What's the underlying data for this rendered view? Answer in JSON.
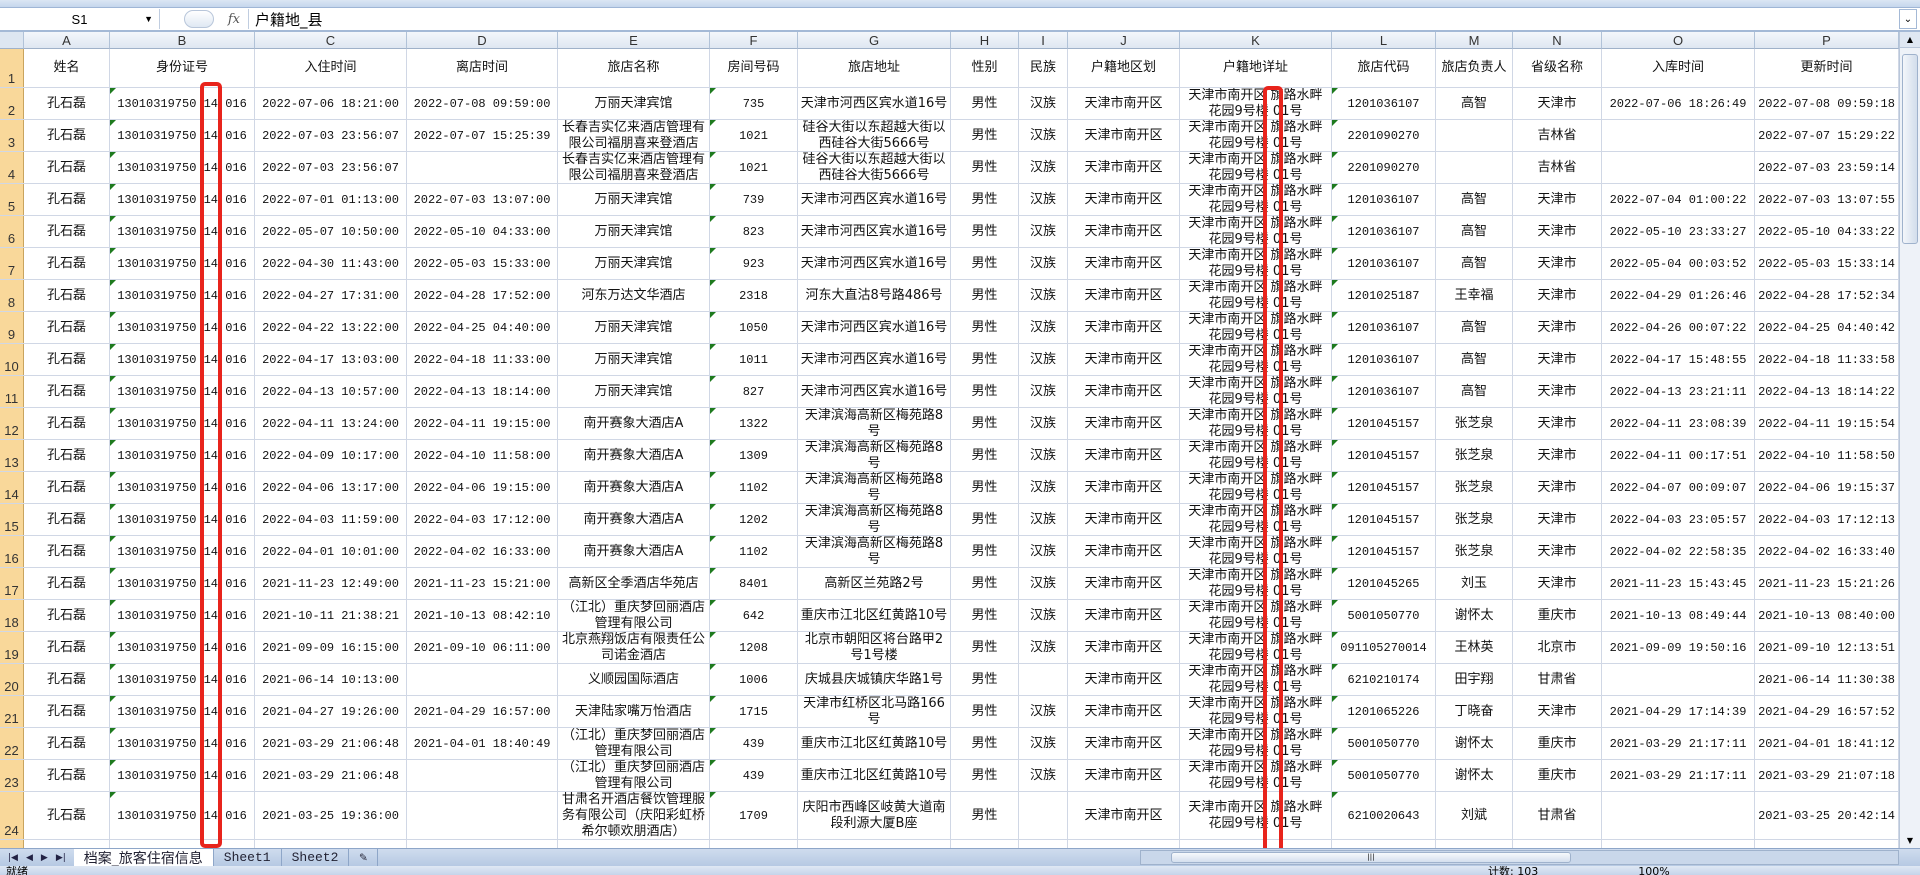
{
  "formula_bar": {
    "name_box": "S1",
    "fx_label": "fx",
    "formula": "户籍地_县"
  },
  "columns": [
    "A",
    "B",
    "C",
    "D",
    "E",
    "F",
    "G",
    "H",
    "I",
    "J",
    "K",
    "L",
    "M",
    "N",
    "O",
    "P"
  ],
  "header_row": [
    "姓名",
    "身份证号",
    "入住时间",
    "离店时间",
    "旅店名称",
    "房间号码",
    "旅店地址",
    "性别",
    "民族",
    "户籍地区划",
    "户籍地详址",
    "旅店代码",
    "旅店负责人",
    "省级名称",
    "入库时间",
    "更新时间"
  ],
  "rows": [
    {
      "n": "2",
      "cells": [
        "孔石磊",
        "13010319750 14 016",
        "2022-07-06 18:21:00",
        "2022-07-08 09:59:00",
        "万丽天津宾馆",
        "735",
        "天津市河西区宾水道16号",
        "男性",
        "汉族",
        "天津市南开区",
        "天津市南开区  旗路水畔\n花园9号楼  01号",
        "1201036107",
        "高智",
        "天津市",
        "2022-07-06 18:26:49",
        "2022-07-08 09:59:18"
      ]
    },
    {
      "n": "3",
      "cells": [
        "孔石磊",
        "13010319750 14 016",
        "2022-07-03 23:56:07",
        "2022-07-07 15:25:39",
        "长春吉实亿来酒店管理有限公司福朋喜来登酒店",
        "1021",
        "硅谷大街以东超越大街以西硅谷大街5666号",
        "男性",
        "汉族",
        "天津市南开区",
        "天津市南开区  旗路水畔\n花园9号楼  01号",
        "2201090270",
        "",
        "吉林省",
        "",
        "2022-07-07 15:29:22"
      ]
    },
    {
      "n": "4",
      "cells": [
        "孔石磊",
        "13010319750 14 016",
        "2022-07-03 23:56:07",
        "",
        "长春吉实亿来酒店管理有限公司福朋喜来登酒店",
        "1021",
        "硅谷大街以东超越大街以西硅谷大街5666号",
        "男性",
        "汉族",
        "天津市南开区",
        "天津市南开区  旗路水畔\n花园9号楼  01号",
        "2201090270",
        "",
        "吉林省",
        "",
        "2022-07-03 23:59:14"
      ]
    },
    {
      "n": "5",
      "cells": [
        "孔石磊",
        "13010319750 14 016",
        "2022-07-01 01:13:00",
        "2022-07-03 13:07:00",
        "万丽天津宾馆",
        "739",
        "天津市河西区宾水道16号",
        "男性",
        "汉族",
        "天津市南开区",
        "天津市南开区  旗路水畔\n花园9号楼  01号",
        "1201036107",
        "高智",
        "天津市",
        "2022-07-04 01:00:22",
        "2022-07-03 13:07:55"
      ]
    },
    {
      "n": "6",
      "cells": [
        "孔石磊",
        "13010319750 14 016",
        "2022-05-07 10:50:00",
        "2022-05-10 04:33:00",
        "万丽天津宾馆",
        "823",
        "天津市河西区宾水道16号",
        "男性",
        "汉族",
        "天津市南开区",
        "天津市南开区  旗路水畔\n花园9号楼  01号",
        "1201036107",
        "高智",
        "天津市",
        "2022-05-10 23:33:27",
        "2022-05-10 04:33:22"
      ]
    },
    {
      "n": "7",
      "cells": [
        "孔石磊",
        "13010319750 14 016",
        "2022-04-30 11:43:00",
        "2022-05-03 15:33:00",
        "万丽天津宾馆",
        "923",
        "天津市河西区宾水道16号",
        "男性",
        "汉族",
        "天津市南开区",
        "天津市南开区  旗路水畔\n花园9号楼  01号",
        "1201036107",
        "高智",
        "天津市",
        "2022-05-04 00:03:52",
        "2022-05-03 15:33:14"
      ]
    },
    {
      "n": "8",
      "cells": [
        "孔石磊",
        "13010319750 14 016",
        "2022-04-27 17:31:00",
        "2022-04-28 17:52:00",
        "河东万达文华酒店",
        "2318",
        "河东大直沽8号路486号",
        "男性",
        "汉族",
        "天津市南开区",
        "天津市南开区  旗路水畔\n花园9号楼  01号",
        "1201025187",
        "王幸福",
        "天津市",
        "2022-04-29 01:26:46",
        "2022-04-28 17:52:34"
      ]
    },
    {
      "n": "9",
      "cells": [
        "孔石磊",
        "13010319750 14 016",
        "2022-04-22 13:22:00",
        "2022-04-25 04:40:00",
        "万丽天津宾馆",
        "1050",
        "天津市河西区宾水道16号",
        "男性",
        "汉族",
        "天津市南开区",
        "天津市南开区  旗路水畔\n花园9号楼  01号",
        "1201036107",
        "高智",
        "天津市",
        "2022-04-26 00:07:22",
        "2022-04-25 04:40:42"
      ]
    },
    {
      "n": "10",
      "cells": [
        "孔石磊",
        "13010319750 14 016",
        "2022-04-17 13:03:00",
        "2022-04-18 11:33:00",
        "万丽天津宾馆",
        "1011",
        "天津市河西区宾水道16号",
        "男性",
        "汉族",
        "天津市南开区",
        "天津市南开区  旗路水畔\n花园9号楼  01号",
        "1201036107",
        "高智",
        "天津市",
        "2022-04-17 15:48:55",
        "2022-04-18 11:33:58"
      ]
    },
    {
      "n": "11",
      "cells": [
        "孔石磊",
        "13010319750 14 016",
        "2022-04-13 10:57:00",
        "2022-04-13 18:14:00",
        "万丽天津宾馆",
        "827",
        "天津市河西区宾水道16号",
        "男性",
        "汉族",
        "天津市南开区",
        "天津市南开区  旗路水畔\n花园9号楼  01号",
        "1201036107",
        "高智",
        "天津市",
        "2022-04-13 23:21:11",
        "2022-04-13 18:14:22"
      ]
    },
    {
      "n": "12",
      "cells": [
        "孔石磊",
        "13010319750 14 016",
        "2022-04-11 13:24:00",
        "2022-04-11 19:15:00",
        "南开赛象大酒店A",
        "1322",
        "天津滨海高新区梅苑路8号",
        "男性",
        "汉族",
        "天津市南开区",
        "天津市南开区  旗路水畔\n花园9号楼  01号",
        "1201045157",
        "张芝泉",
        "天津市",
        "2022-04-11 23:08:39",
        "2022-04-11 19:15:54"
      ]
    },
    {
      "n": "13",
      "cells": [
        "孔石磊",
        "13010319750 14 016",
        "2022-04-09 10:17:00",
        "2022-04-10 11:58:00",
        "南开赛象大酒店A",
        "1309",
        "天津滨海高新区梅苑路8号",
        "男性",
        "汉族",
        "天津市南开区",
        "天津市南开区  旗路水畔\n花园9号楼  01号",
        "1201045157",
        "张芝泉",
        "天津市",
        "2022-04-11 00:17:51",
        "2022-04-10 11:58:50"
      ]
    },
    {
      "n": "14",
      "cells": [
        "孔石磊",
        "13010319750 14 016",
        "2022-04-06 13:17:00",
        "2022-04-06 19:15:00",
        "南开赛象大酒店A",
        "1102",
        "天津滨海高新区梅苑路8号",
        "男性",
        "汉族",
        "天津市南开区",
        "天津市南开区  旗路水畔\n花园9号楼  01号",
        "1201045157",
        "张芝泉",
        "天津市",
        "2022-04-07 00:09:07",
        "2022-04-06 19:15:37"
      ]
    },
    {
      "n": "15",
      "cells": [
        "孔石磊",
        "13010319750 14 016",
        "2022-04-03 11:59:00",
        "2022-04-03 17:12:00",
        "南开赛象大酒店A",
        "1202",
        "天津滨海高新区梅苑路8号",
        "男性",
        "汉族",
        "天津市南开区",
        "天津市南开区  旗路水畔\n花园9号楼  01号",
        "1201045157",
        "张芝泉",
        "天津市",
        "2022-04-03 23:05:57",
        "2022-04-03 17:12:13"
      ]
    },
    {
      "n": "16",
      "cells": [
        "孔石磊",
        "13010319750 14 016",
        "2022-04-01 10:01:00",
        "2022-04-02 16:33:00",
        "南开赛象大酒店A",
        "1102",
        "天津滨海高新区梅苑路8号",
        "男性",
        "汉族",
        "天津市南开区",
        "天津市南开区  旗路水畔\n花园9号楼  01号",
        "1201045157",
        "张芝泉",
        "天津市",
        "2022-04-02 22:58:35",
        "2022-04-02 16:33:40"
      ]
    },
    {
      "n": "17",
      "cells": [
        "孔石磊",
        "13010319750 14 016",
        "2021-11-23 12:49:00",
        "2021-11-23 15:21:00",
        "高新区全季酒店华苑店",
        "8401",
        "高新区兰苑路2号",
        "男性",
        "汉族",
        "天津市南开区",
        "天津市南开区  旗路水畔\n花园9号楼  01号",
        "1201045265",
        "刘玉",
        "天津市",
        "2021-11-23 15:43:45",
        "2021-11-23 15:21:26"
      ]
    },
    {
      "n": "18",
      "cells": [
        "孔石磊",
        "13010319750 14 016",
        "2021-10-11 21:38:21",
        "2021-10-13 08:42:10",
        "（江北）重庆梦回丽酒店管理有限公司",
        "642",
        "重庆市江北区红黄路10号",
        "男性",
        "汉族",
        "天津市南开区",
        "天津市南开区  旗路水畔\n花园9号楼  01号",
        "5001050770",
        "谢怀太",
        "重庆市",
        "2021-10-13 08:49:44",
        "2021-10-13 08:40:00"
      ]
    },
    {
      "n": "19",
      "cells": [
        "孔石磊",
        "13010319750 14 016",
        "2021-09-09 16:15:00",
        "2021-09-10 06:11:00",
        "北京燕翔饭店有限责任公司诺金酒店",
        "1208",
        "北京市朝阳区将台路甲2号1号楼",
        "男性",
        "汉族",
        "天津市南开区",
        "天津市南开区  旗路水畔\n花园9号楼  01号",
        "091105270014",
        "王林英",
        "北京市",
        "2021-09-09 19:50:16",
        "2021-09-10 12:13:51"
      ]
    },
    {
      "n": "20",
      "cells": [
        "孔石磊",
        "13010319750 14 016",
        "2021-06-14 10:13:00",
        "",
        "义顺园国际酒店",
        "1006",
        "庆城县庆城镇庆华路1号",
        "男性",
        "",
        "天津市南开区",
        "天津市南开区  旗路水畔\n花园9号楼  01号",
        "6210210174",
        "田宇翔",
        "甘肃省",
        "",
        "2021-06-14 11:30:38"
      ]
    },
    {
      "n": "21",
      "cells": [
        "孔石磊",
        "13010319750 14 016",
        "2021-04-27 19:26:00",
        "2021-04-29 16:57:00",
        "天津陆家嘴万怡酒店",
        "1715",
        "天津市红桥区北马路166号",
        "男性",
        "汉族",
        "天津市南开区",
        "天津市南开区  旗路水畔\n花园9号楼  01号",
        "1201065226",
        "丁晓奋",
        "天津市",
        "2021-04-29 17:14:39",
        "2021-04-29 16:57:52"
      ]
    },
    {
      "n": "22",
      "cells": [
        "孔石磊",
        "13010319750 14 016",
        "2021-03-29 21:06:48",
        "2021-04-01 18:40:49",
        "（江北）重庆梦回丽酒店管理有限公司",
        "439",
        "重庆市江北区红黄路10号",
        "男性",
        "汉族",
        "天津市南开区",
        "天津市南开区  旗路水畔\n花园9号楼  01号",
        "5001050770",
        "谢怀太",
        "重庆市",
        "2021-03-29 21:17:11",
        "2021-04-01 18:41:12"
      ]
    },
    {
      "n": "23",
      "cells": [
        "孔石磊",
        "13010319750 14 016",
        "2021-03-29 21:06:48",
        "",
        "（江北）重庆梦回丽酒店管理有限公司",
        "439",
        "重庆市江北区红黄路10号",
        "男性",
        "汉族",
        "天津市南开区",
        "天津市南开区  旗路水畔\n花园9号楼  01号",
        "5001050770",
        "谢怀太",
        "重庆市",
        "2021-03-29 21:17:11",
        "2021-03-29 21:07:18"
      ]
    },
    {
      "n": "24",
      "cells": [
        "孔石磊",
        "13010319750 14 016",
        "2021-03-25 19:36:00",
        "",
        "甘肃名开酒店餐饮管理服务有限公司（庆阳彩虹桥希尔顿欢朋酒店）",
        "1709",
        "庆阳市西峰区岐黄大道南段利源大厦B座",
        "男性",
        "",
        "天津市南开区",
        "天津市南开区  旗路水畔\n花园9号楼  01号",
        "6210020643",
        "刘斌",
        "甘肃省",
        "",
        "2021-03-25 20:42:14"
      ]
    }
  ],
  "sheet_tabs": [
    "档案_旅客住宿信息",
    "Sheet1",
    "Sheet2"
  ],
  "active_sheet": "档案_旅客住宿信息",
  "status_bar": {
    "ready": "就绪",
    "count": "计数: 103",
    "zoom": "100%"
  },
  "colors": {
    "highlight_box": "#e8241c",
    "row_header_selected": "#f9d89a",
    "number_as_text_flag": "#1e7a1e"
  }
}
